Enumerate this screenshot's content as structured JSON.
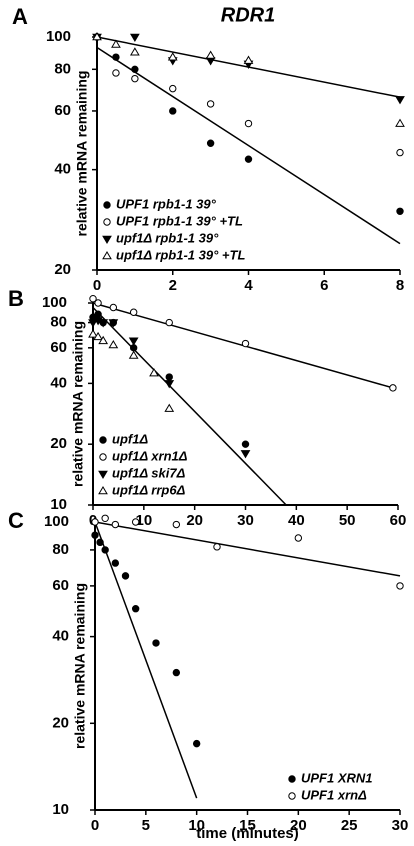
{
  "chart_data": [
    {
      "type": "scatter",
      "panel_label": "A",
      "title": "RDR1",
      "ylabel": "relative mRNA remaining",
      "log_y": true,
      "legend": "lower left",
      "xlim": [
        0,
        8
      ],
      "ylim": [
        20,
        100
      ],
      "xticks": [
        0,
        2,
        4,
        6,
        8
      ],
      "yticks": [
        20,
        40,
        60,
        80,
        100
      ],
      "series": [
        {
          "name": "UPF1 rpb1-1 39°",
          "marker": "filled-circle",
          "color": "#000000",
          "x": [
            0,
            0.5,
            1,
            2,
            3,
            4,
            8
          ],
          "values": [
            100,
            87,
            80,
            60,
            48,
            43,
            30
          ]
        },
        {
          "name": "UPF1 rpb1-1 39° +TL",
          "marker": "open-circle",
          "color": "#000000",
          "x": [
            0,
            0.5,
            1,
            2,
            3,
            4,
            8
          ],
          "values": [
            100,
            78,
            75,
            70,
            63,
            55,
            45
          ]
        },
        {
          "name": "upf1Δ rpb1-1 39°",
          "marker": "filled-triangle-down",
          "color": "#000000",
          "x": [
            0,
            1,
            2,
            3,
            4,
            8
          ],
          "values": [
            100,
            100,
            85,
            85,
            83,
            65
          ]
        },
        {
          "name": "upf1Δ rpb1-1 39° +TL",
          "marker": "open-triangle-up",
          "color": "#000000",
          "x": [
            0,
            0.5,
            1,
            2,
            3,
            4,
            8
          ],
          "values": [
            100,
            95,
            90,
            87,
            88,
            85,
            55
          ]
        }
      ],
      "fit_lines": [
        {
          "x": [
            0,
            8
          ],
          "values": [
            93,
            24
          ]
        },
        {
          "x": [
            0,
            8
          ],
          "values": [
            100,
            66
          ]
        }
      ]
    },
    {
      "type": "scatter",
      "panel_label": "B",
      "ylabel": "relative mRNA remaining",
      "log_y": true,
      "legend": "lower left",
      "xlim": [
        0,
        60
      ],
      "ylim": [
        10,
        100
      ],
      "xticks": [
        0,
        10,
        20,
        30,
        40,
        50,
        60
      ],
      "yticks": [
        10,
        20,
        40,
        60,
        80,
        100
      ],
      "series": [
        {
          "name": "upf1Δ",
          "marker": "filled-circle",
          "color": "#000000",
          "x": [
            0,
            1,
            2,
            4,
            8,
            15,
            30
          ],
          "values": [
            85,
            88,
            80,
            80,
            60,
            43,
            20
          ]
        },
        {
          "name": "upf1Δ xrn1Δ",
          "marker": "open-circle",
          "color": "#000000",
          "x": [
            0,
            1,
            4,
            8,
            15,
            30,
            59
          ],
          "values": [
            105,
            100,
            95,
            90,
            80,
            63,
            38
          ]
        },
        {
          "name": "upf1Δ ski7Δ",
          "marker": "filled-triangle-down",
          "color": "#000000",
          "x": [
            0,
            1,
            2,
            4,
            8,
            15,
            30
          ],
          "values": [
            80,
            82,
            80,
            80,
            65,
            40,
            18
          ]
        },
        {
          "name": "upf1Δ rrp6Δ",
          "marker": "open-triangle-up",
          "color": "#000000",
          "x": [
            0,
            1,
            2,
            4,
            8,
            12,
            15
          ],
          "values": [
            70,
            68,
            65,
            62,
            55,
            45,
            30
          ]
        }
      ],
      "fit_lines": [
        {
          "x": [
            0,
            59
          ],
          "values": [
            100,
            38
          ]
        },
        {
          "x": [
            0,
            38
          ],
          "values": [
            95,
            10
          ]
        }
      ]
    },
    {
      "type": "scatter",
      "panel_label": "C",
      "ylabel": "relative mRNA remaining",
      "xlabel": "time (minutes)",
      "log_y": true,
      "legend": "lower right",
      "xlim": [
        0,
        30
      ],
      "ylim": [
        10,
        100
      ],
      "xticks": [
        0,
        5,
        10,
        15,
        20,
        25,
        30
      ],
      "yticks": [
        10,
        20,
        40,
        60,
        80,
        100
      ],
      "series": [
        {
          "name": "UPF1 XRN1",
          "marker": "filled-circle",
          "color": "#000000",
          "x": [
            0,
            0.5,
            1,
            2,
            3,
            4,
            6,
            8,
            10
          ],
          "values": [
            90,
            85,
            80,
            72,
            65,
            50,
            38,
            30,
            17
          ]
        },
        {
          "name": "UPF1 xrnΔ",
          "marker": "open-circle",
          "color": "#000000",
          "x": [
            0,
            1,
            2,
            4,
            8,
            12,
            20,
            30
          ],
          "values": [
            100,
            103,
            98,
            100,
            98,
            82,
            88,
            60
          ]
        }
      ],
      "fit_lines": [
        {
          "x": [
            0,
            10
          ],
          "values": [
            100,
            11
          ]
        },
        {
          "x": [
            0,
            30
          ],
          "values": [
            100,
            65
          ]
        }
      ]
    }
  ]
}
